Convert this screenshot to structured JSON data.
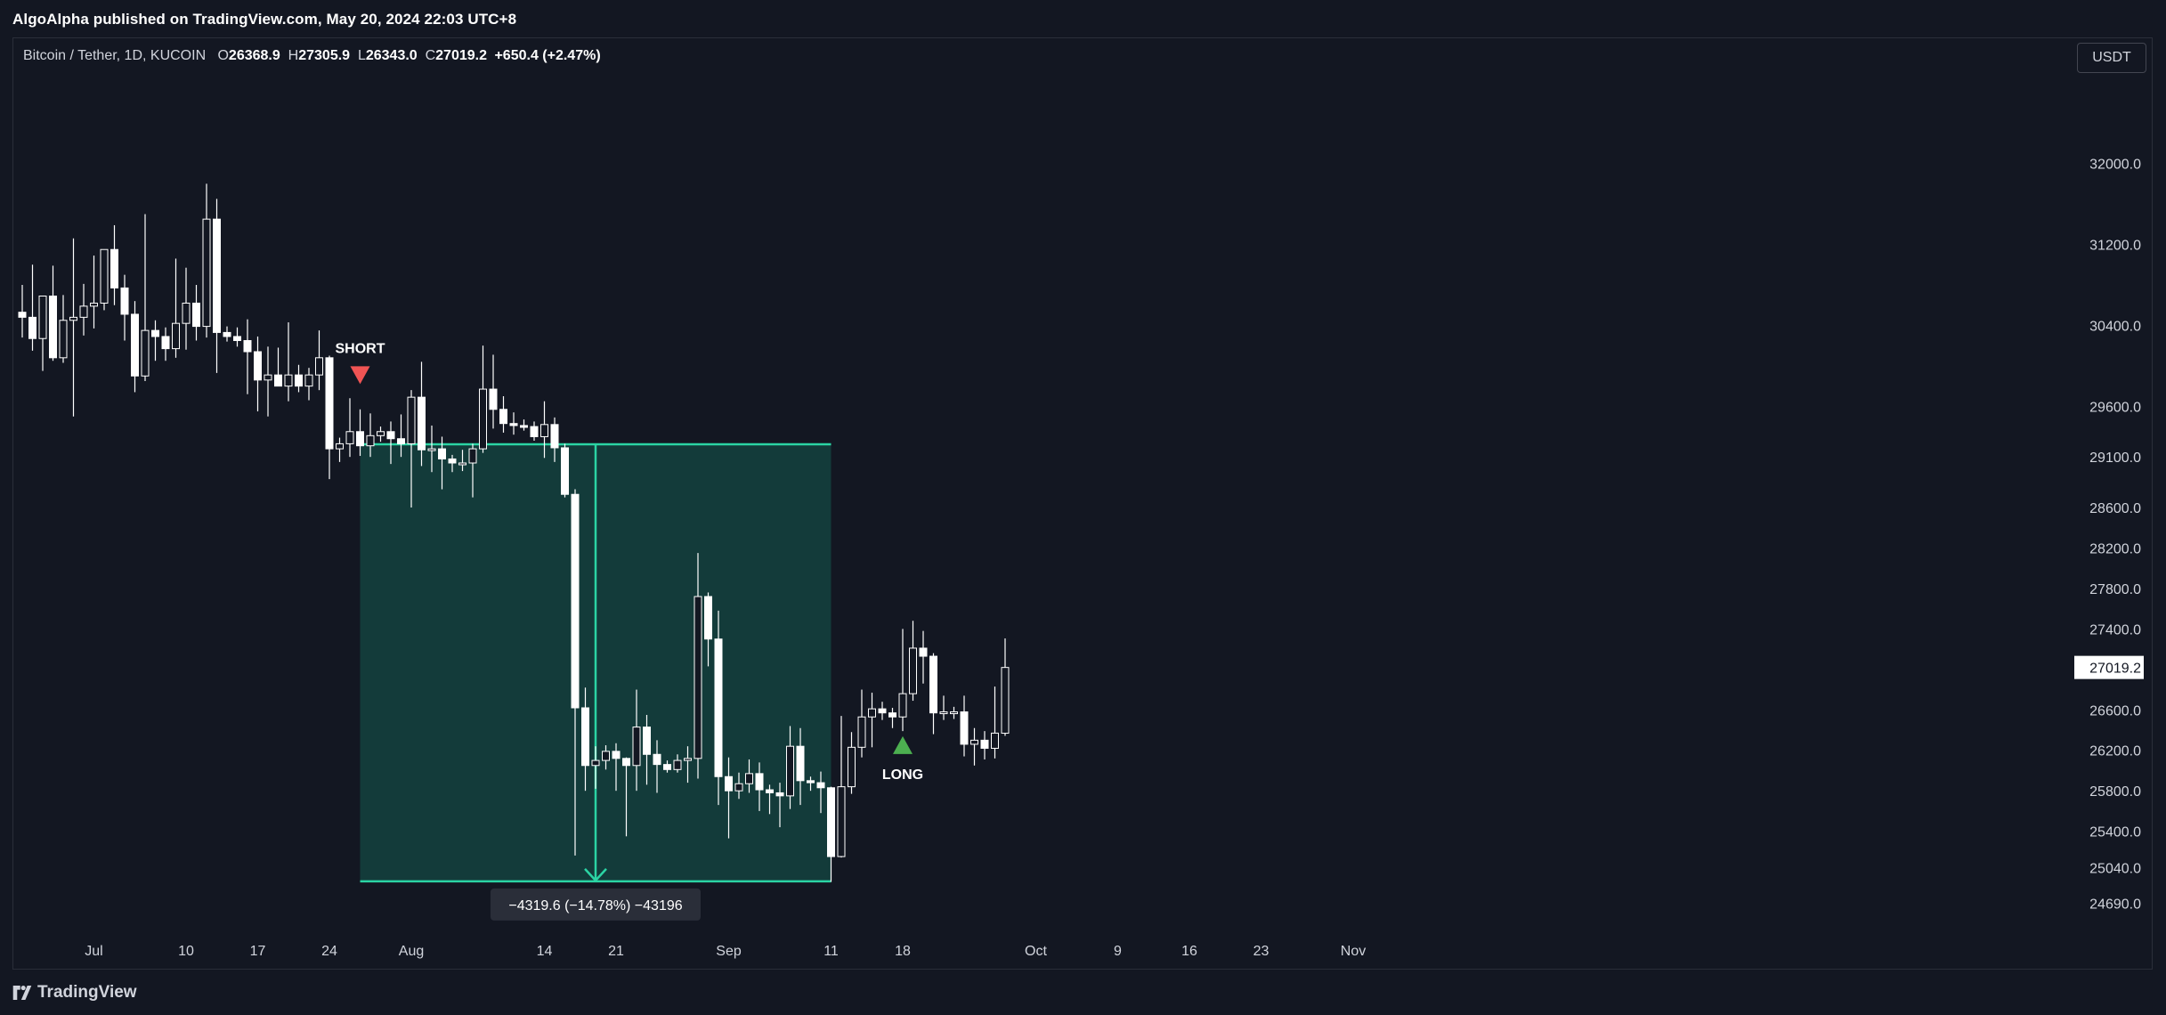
{
  "header": {
    "published_line": "AlgoAlpha published on TradingView.com, May 20, 2024 22:03 UTC+8"
  },
  "legend": {
    "symbol": "Bitcoin / Tether, 1D, KUCOIN",
    "open_label": "O",
    "open": "26368.9",
    "high_label": "H",
    "high": "27305.9",
    "low_label": "L",
    "low": "26343.0",
    "close_label": "C",
    "close": "27019.2",
    "change": "+650.4 (+2.47%)"
  },
  "currency_button": "USDT",
  "footer": {
    "brand": "TradingView",
    "logo_icon": "tradingview-logo-icon"
  },
  "colors": {
    "background": "#131722",
    "candle_up_body": "#131722",
    "candle_down_body": "#ffffff",
    "wick": "#ffffff",
    "measure_fill": "#133b3a",
    "measure_line": "#2bd4a4",
    "short_marker": "#f05454",
    "long_marker": "#4caf50",
    "grid": "#2a2e39",
    "axis_text": "#d1d4dc"
  },
  "chart_data": {
    "type": "candlestick",
    "title": "Bitcoin / Tether, 1D, KUCOIN",
    "ylim": [
      24420,
      32560
    ],
    "y_axis_ticks": [
      "32000.0",
      "31200.0",
      "30400.0",
      "29600.0",
      "29100.0",
      "28600.0",
      "28200.0",
      "27800.0",
      "27400.0",
      "27019.2",
      "26600.0",
      "26200.0",
      "25800.0",
      "25400.0",
      "25040.0",
      "24690.0"
    ],
    "y_axis_tick_values": [
      32000,
      31200,
      30400,
      29600,
      29100,
      28600,
      28200,
      27800,
      27400,
      27019.2,
      26600,
      26200,
      25800,
      25400,
      25040,
      24690
    ],
    "current_price_label": "27019.2",
    "x_axis_ticks": [
      {
        "label": "Jul",
        "date": "2023-07-01"
      },
      {
        "label": "10",
        "date": "2023-07-10"
      },
      {
        "label": "17",
        "date": "2023-07-17"
      },
      {
        "label": "24",
        "date": "2023-07-24"
      },
      {
        "label": "Aug",
        "date": "2023-08-01"
      },
      {
        "label": "14",
        "date": "2023-08-14"
      },
      {
        "label": "21",
        "date": "2023-08-21"
      },
      {
        "label": "Sep",
        "date": "2023-09-01"
      },
      {
        "label": "11",
        "date": "2023-09-11"
      },
      {
        "label": "18",
        "date": "2023-09-18"
      },
      {
        "label": "Oct",
        "date": "2023-10-01"
      },
      {
        "label": "9",
        "date": "2023-10-09"
      },
      {
        "label": "16",
        "date": "2023-10-16"
      },
      {
        "label": "23",
        "date": "2023-10-23"
      },
      {
        "label": "Nov",
        "date": "2023-11-01"
      }
    ],
    "candles": [
      {
        "date": "2023-06-24",
        "o": 30530,
        "h": 30800,
        "l": 30280,
        "c": 30480
      },
      {
        "date": "2023-06-25",
        "o": 30480,
        "h": 31000,
        "l": 30150,
        "c": 30270
      },
      {
        "date": "2023-06-26",
        "o": 30270,
        "h": 30660,
        "l": 29950,
        "c": 30690
      },
      {
        "date": "2023-06-27",
        "o": 30690,
        "h": 30990,
        "l": 30050,
        "c": 30080
      },
      {
        "date": "2023-06-28",
        "o": 30080,
        "h": 30700,
        "l": 30030,
        "c": 30450
      },
      {
        "date": "2023-06-29",
        "o": 30450,
        "h": 31260,
        "l": 29500,
        "c": 30480
      },
      {
        "date": "2023-06-30",
        "o": 30480,
        "h": 30810,
        "l": 30300,
        "c": 30590
      },
      {
        "date": "2023-07-01",
        "o": 30590,
        "h": 31090,
        "l": 30370,
        "c": 30620
      },
      {
        "date": "2023-07-02",
        "o": 30620,
        "h": 31110,
        "l": 30550,
        "c": 31150
      },
      {
        "date": "2023-07-03",
        "o": 31150,
        "h": 31390,
        "l": 30600,
        "c": 30770
      },
      {
        "date": "2023-07-04",
        "o": 30770,
        "h": 30900,
        "l": 30250,
        "c": 30510
      },
      {
        "date": "2023-07-05",
        "o": 30510,
        "h": 30640,
        "l": 29740,
        "c": 29900
      },
      {
        "date": "2023-07-06",
        "o": 29900,
        "h": 31500,
        "l": 29850,
        "c": 30350
      },
      {
        "date": "2023-07-07",
        "o": 30350,
        "h": 30450,
        "l": 30050,
        "c": 30290
      },
      {
        "date": "2023-07-08",
        "o": 30290,
        "h": 30380,
        "l": 30050,
        "c": 30170
      },
      {
        "date": "2023-07-09",
        "o": 30170,
        "h": 31060,
        "l": 30080,
        "c": 30420
      },
      {
        "date": "2023-07-10",
        "o": 30420,
        "h": 30970,
        "l": 30160,
        "c": 30620
      },
      {
        "date": "2023-07-11",
        "o": 30620,
        "h": 30800,
        "l": 30250,
        "c": 30390
      },
      {
        "date": "2023-07-12",
        "o": 30390,
        "h": 31800,
        "l": 30280,
        "c": 31450
      },
      {
        "date": "2023-07-13",
        "o": 31450,
        "h": 31650,
        "l": 29930,
        "c": 30330
      },
      {
        "date": "2023-07-14",
        "o": 30330,
        "h": 30390,
        "l": 30240,
        "c": 30290
      },
      {
        "date": "2023-07-15",
        "o": 30290,
        "h": 30380,
        "l": 30190,
        "c": 30250
      },
      {
        "date": "2023-07-16",
        "o": 30250,
        "h": 30460,
        "l": 29720,
        "c": 30140
      },
      {
        "date": "2023-07-17",
        "o": 30140,
        "h": 30290,
        "l": 29550,
        "c": 29860
      },
      {
        "date": "2023-07-18",
        "o": 29860,
        "h": 30190,
        "l": 29500,
        "c": 29910
      },
      {
        "date": "2023-07-19",
        "o": 29910,
        "h": 30180,
        "l": 29800,
        "c": 29800
      },
      {
        "date": "2023-07-20",
        "o": 29800,
        "h": 30430,
        "l": 29650,
        "c": 29910
      },
      {
        "date": "2023-07-21",
        "o": 29910,
        "h": 30010,
        "l": 29740,
        "c": 29800
      },
      {
        "date": "2023-07-22",
        "o": 29800,
        "h": 29980,
        "l": 29660,
        "c": 29910
      },
      {
        "date": "2023-07-23",
        "o": 29910,
        "h": 30350,
        "l": 29760,
        "c": 30080
      },
      {
        "date": "2023-07-24",
        "o": 30080,
        "h": 30100,
        "l": 28880,
        "c": 29180
      },
      {
        "date": "2023-07-25",
        "o": 29180,
        "h": 29290,
        "l": 29050,
        "c": 29230
      },
      {
        "date": "2023-07-26",
        "o": 29230,
        "h": 29680,
        "l": 29100,
        "c": 29350
      },
      {
        "date": "2023-07-27",
        "o": 29350,
        "h": 29570,
        "l": 29110,
        "c": 29210
      },
      {
        "date": "2023-07-28",
        "o": 29210,
        "h": 29530,
        "l": 29100,
        "c": 29310
      },
      {
        "date": "2023-07-29",
        "o": 29310,
        "h": 29400,
        "l": 29250,
        "c": 29350
      },
      {
        "date": "2023-07-30",
        "o": 29350,
        "h": 29450,
        "l": 29030,
        "c": 29280
      },
      {
        "date": "2023-07-31",
        "o": 29280,
        "h": 29520,
        "l": 29100,
        "c": 29230
      },
      {
        "date": "2023-08-01",
        "o": 29230,
        "h": 29760,
        "l": 28600,
        "c": 29690
      },
      {
        "date": "2023-08-02",
        "o": 29690,
        "h": 30040,
        "l": 29010,
        "c": 29170
      },
      {
        "date": "2023-08-03",
        "o": 29170,
        "h": 29410,
        "l": 28950,
        "c": 29180
      },
      {
        "date": "2023-08-04",
        "o": 29180,
        "h": 29300,
        "l": 28780,
        "c": 29080
      },
      {
        "date": "2023-08-05",
        "o": 29080,
        "h": 29120,
        "l": 28950,
        "c": 29040
      },
      {
        "date": "2023-08-06",
        "o": 29040,
        "h": 29170,
        "l": 28960,
        "c": 29040
      },
      {
        "date": "2023-08-07",
        "o": 29040,
        "h": 29230,
        "l": 28700,
        "c": 29180
      },
      {
        "date": "2023-08-08",
        "o": 29180,
        "h": 30200,
        "l": 29140,
        "c": 29770
      },
      {
        "date": "2023-08-09",
        "o": 29770,
        "h": 30110,
        "l": 29380,
        "c": 29570
      },
      {
        "date": "2023-08-10",
        "o": 29570,
        "h": 29700,
        "l": 29340,
        "c": 29430
      },
      {
        "date": "2023-08-11",
        "o": 29430,
        "h": 29540,
        "l": 29320,
        "c": 29410
      },
      {
        "date": "2023-08-12",
        "o": 29410,
        "h": 29470,
        "l": 29360,
        "c": 29400
      },
      {
        "date": "2023-08-13",
        "o": 29400,
        "h": 29450,
        "l": 29260,
        "c": 29300
      },
      {
        "date": "2023-08-14",
        "o": 29300,
        "h": 29650,
        "l": 29090,
        "c": 29420
      },
      {
        "date": "2023-08-15",
        "o": 29420,
        "h": 29490,
        "l": 29050,
        "c": 29190
      },
      {
        "date": "2023-08-16",
        "o": 29190,
        "h": 29230,
        "l": 28700,
        "c": 28730
      },
      {
        "date": "2023-08-17",
        "o": 28730,
        "h": 28780,
        "l": 25160,
        "c": 26620
      },
      {
        "date": "2023-08-18",
        "o": 26620,
        "h": 26820,
        "l": 25800,
        "c": 26050
      },
      {
        "date": "2023-08-19",
        "o": 26050,
        "h": 26240,
        "l": 25820,
        "c": 26100
      },
      {
        "date": "2023-08-20",
        "o": 26100,
        "h": 26250,
        "l": 26010,
        "c": 26190
      },
      {
        "date": "2023-08-21",
        "o": 26190,
        "h": 26270,
        "l": 25800,
        "c": 26120
      },
      {
        "date": "2023-08-22",
        "o": 26120,
        "h": 26130,
        "l": 25350,
        "c": 26050
      },
      {
        "date": "2023-08-23",
        "o": 26050,
        "h": 26800,
        "l": 25800,
        "c": 26430
      },
      {
        "date": "2023-08-24",
        "o": 26430,
        "h": 26550,
        "l": 25860,
        "c": 26160
      },
      {
        "date": "2023-08-25",
        "o": 26160,
        "h": 26300,
        "l": 25780,
        "c": 26060
      },
      {
        "date": "2023-08-26",
        "o": 26060,
        "h": 26100,
        "l": 25980,
        "c": 26010
      },
      {
        "date": "2023-08-27",
        "o": 26010,
        "h": 26160,
        "l": 25980,
        "c": 26100
      },
      {
        "date": "2023-08-28",
        "o": 26100,
        "h": 26240,
        "l": 25880,
        "c": 26120
      },
      {
        "date": "2023-08-29",
        "o": 26120,
        "h": 28150,
        "l": 25920,
        "c": 27720
      },
      {
        "date": "2023-08-30",
        "o": 27720,
        "h": 27760,
        "l": 27030,
        "c": 27300
      },
      {
        "date": "2023-08-31",
        "o": 27300,
        "h": 27580,
        "l": 25660,
        "c": 25940
      },
      {
        "date": "2023-09-01",
        "o": 25940,
        "h": 26130,
        "l": 25330,
        "c": 25800
      },
      {
        "date": "2023-09-02",
        "o": 25800,
        "h": 25980,
        "l": 25720,
        "c": 25870
      },
      {
        "date": "2023-09-03",
        "o": 25870,
        "h": 26110,
        "l": 25780,
        "c": 25970
      },
      {
        "date": "2023-09-04",
        "o": 25970,
        "h": 26080,
        "l": 25600,
        "c": 25810
      },
      {
        "date": "2023-09-05",
        "o": 25810,
        "h": 25860,
        "l": 25570,
        "c": 25780
      },
      {
        "date": "2023-09-06",
        "o": 25780,
        "h": 25880,
        "l": 25440,
        "c": 25750
      },
      {
        "date": "2023-09-07",
        "o": 25750,
        "h": 26440,
        "l": 25620,
        "c": 26240
      },
      {
        "date": "2023-09-08",
        "o": 26240,
        "h": 26420,
        "l": 25660,
        "c": 25900
      },
      {
        "date": "2023-09-09",
        "o": 25900,
        "h": 25940,
        "l": 25800,
        "c": 25880
      },
      {
        "date": "2023-09-10",
        "o": 25880,
        "h": 25990,
        "l": 25580,
        "c": 25830
      },
      {
        "date": "2023-09-11",
        "o": 25830,
        "h": 25840,
        "l": 24900,
        "c": 25150
      },
      {
        "date": "2023-09-12",
        "o": 25150,
        "h": 26540,
        "l": 25140,
        "c": 25840
      },
      {
        "date": "2023-09-13",
        "o": 25840,
        "h": 26380,
        "l": 25770,
        "c": 26230
      },
      {
        "date": "2023-09-14",
        "o": 26230,
        "h": 26800,
        "l": 26130,
        "c": 26530
      },
      {
        "date": "2023-09-15",
        "o": 26530,
        "h": 26770,
        "l": 26230,
        "c": 26610
      },
      {
        "date": "2023-09-16",
        "o": 26610,
        "h": 26680,
        "l": 26500,
        "c": 26570
      },
      {
        "date": "2023-09-17",
        "o": 26570,
        "h": 26620,
        "l": 26420,
        "c": 26530
      },
      {
        "date": "2023-09-18",
        "o": 26530,
        "h": 27400,
        "l": 26390,
        "c": 26760
      },
      {
        "date": "2023-09-19",
        "o": 26760,
        "h": 27480,
        "l": 26690,
        "c": 27210
      },
      {
        "date": "2023-09-20",
        "o": 27210,
        "h": 27380,
        "l": 26860,
        "c": 27130
      },
      {
        "date": "2023-09-21",
        "o": 27130,
        "h": 27160,
        "l": 26360,
        "c": 26570
      },
      {
        "date": "2023-09-22",
        "o": 26570,
        "h": 26740,
        "l": 26500,
        "c": 26580
      },
      {
        "date": "2023-09-23",
        "o": 26580,
        "h": 26630,
        "l": 26510,
        "c": 26580
      },
      {
        "date": "2023-09-24",
        "o": 26580,
        "h": 26740,
        "l": 26140,
        "c": 26260
      },
      {
        "date": "2023-09-25",
        "o": 26260,
        "h": 26420,
        "l": 26050,
        "c": 26300
      },
      {
        "date": "2023-09-26",
        "o": 26300,
        "h": 26390,
        "l": 26110,
        "c": 26220
      },
      {
        "date": "2023-09-27",
        "o": 26220,
        "h": 26830,
        "l": 26120,
        "c": 26370
      },
      {
        "date": "2023-09-28",
        "o": 26369,
        "h": 27306,
        "l": 26343,
        "c": 27019
      }
    ],
    "annotations": [
      {
        "type": "signal",
        "label": "SHORT",
        "date": "2023-07-27",
        "price": 29820,
        "direction": "down"
      },
      {
        "type": "signal",
        "label": "LONG",
        "date": "2023-09-18",
        "price": 26340,
        "direction": "up"
      },
      {
        "type": "price_range",
        "label": "−4319.6 (−14.78%) −43196",
        "date_start": "2023-07-27",
        "date_end": "2023-09-11",
        "price_start": 29225,
        "price_end": 24905
      }
    ]
  }
}
